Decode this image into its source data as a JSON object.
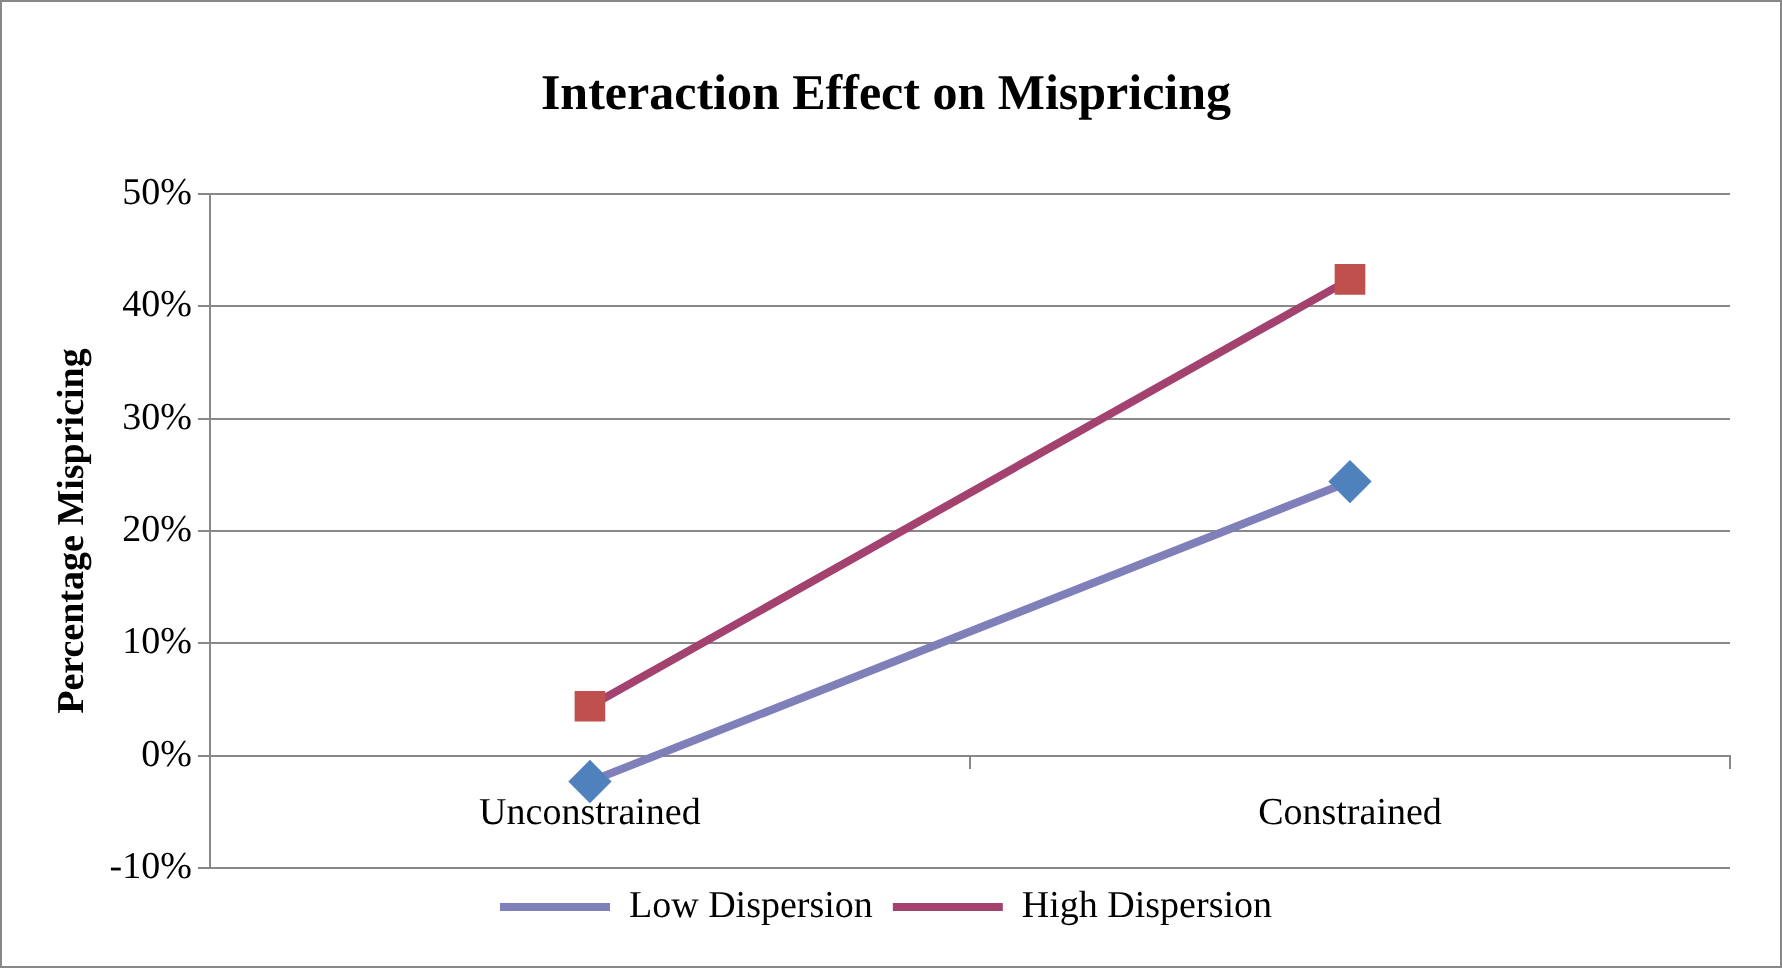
{
  "chart_data": {
    "type": "line",
    "title": "Interaction Effect on Mispricing",
    "ylabel": "Percentage Mispricing",
    "categories": [
      "Unconstrained",
      "Constrained"
    ],
    "series": [
      {
        "name": "Low Dispersion",
        "color": "#4f81bd",
        "marker": "diamond",
        "values": [
          -2.3,
          24.4
        ]
      },
      {
        "name": "High Dispersion",
        "color": "#c0504d",
        "marker": "square",
        "values": [
          4.4,
          42.4
        ]
      }
    ],
    "ylim": [
      -10,
      50
    ],
    "yticks": [
      {
        "value": -10,
        "label": "-10%"
      },
      {
        "value": 0,
        "label": "0%"
      },
      {
        "value": 10,
        "label": "10%"
      },
      {
        "value": 20,
        "label": "20%"
      },
      {
        "value": 30,
        "label": "30%"
      },
      {
        "value": 40,
        "label": "40%"
      },
      {
        "value": 50,
        "label": "50%"
      }
    ],
    "grid": "y",
    "legend": "bottom",
    "line_style": "solid"
  }
}
